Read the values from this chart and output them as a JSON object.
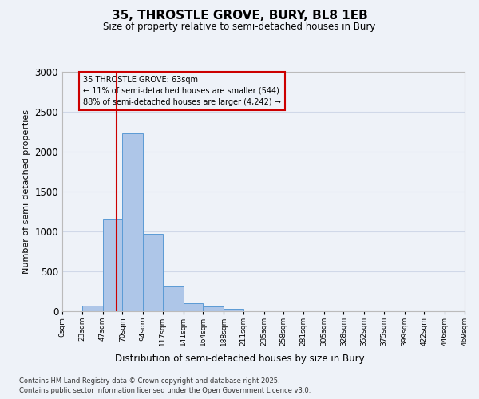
{
  "title": "35, THROSTLE GROVE, BURY, BL8 1EB",
  "subtitle": "Size of property relative to semi-detached houses in Bury",
  "xlabel": "Distribution of semi-detached houses by size in Bury",
  "ylabel": "Number of semi-detached properties",
  "footnote1": "Contains HM Land Registry data © Crown copyright and database right 2025.",
  "footnote2": "Contains public sector information licensed under the Open Government Licence v3.0.",
  "annotation_title": "35 THROSTLE GROVE: 63sqm",
  "annotation_line1": "← 11% of semi-detached houses are smaller (544)",
  "annotation_line2": "88% of semi-detached houses are larger (4,242) →",
  "property_size": 63,
  "bar_bins": [
    0,
    23,
    47,
    70,
    94,
    117,
    141,
    164,
    188,
    211,
    235,
    258,
    281,
    305,
    328,
    352,
    375,
    399,
    422,
    446,
    469
  ],
  "bar_values": [
    0,
    75,
    1150,
    2230,
    970,
    310,
    105,
    60,
    35,
    0,
    0,
    0,
    0,
    0,
    0,
    0,
    0,
    0,
    0,
    0
  ],
  "tick_labels": [
    "0sqm",
    "23sqm",
    "47sqm",
    "70sqm",
    "94sqm",
    "117sqm",
    "141sqm",
    "164sqm",
    "188sqm",
    "211sqm",
    "235sqm",
    "258sqm",
    "281sqm",
    "305sqm",
    "328sqm",
    "352sqm",
    "375sqm",
    "399sqm",
    "422sqm",
    "446sqm",
    "469sqm"
  ],
  "bar_color": "#aec6e8",
  "bar_edge_color": "#5b9bd5",
  "vline_color": "#cc0000",
  "vline_x": 63,
  "annotation_box_color": "#cc0000",
  "grid_color": "#d0d8e8",
  "bg_color": "#eef2f8",
  "ylim": [
    0,
    3000
  ],
  "yticks": [
    0,
    500,
    1000,
    1500,
    2000,
    2500,
    3000
  ]
}
